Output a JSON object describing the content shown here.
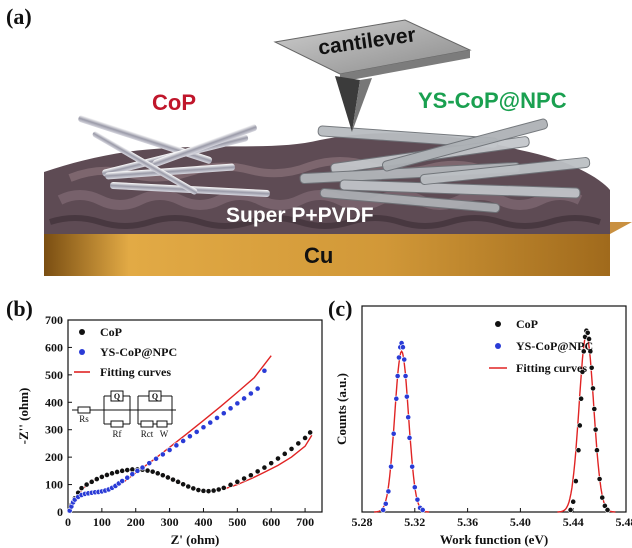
{
  "panels": {
    "a": "(a)",
    "b": "(b)",
    "c": "(c)"
  },
  "scheme": {
    "cantilever": "cantilever",
    "left_material": "CoP",
    "right_material": "YS-CoP@NPC",
    "binder": "Super P+PVDF",
    "substrate": "Cu",
    "colors": {
      "CoP": "#c0162b",
      "YS-CoP@NPC": "#1aa050",
      "substrate": "#d39a3a",
      "binder": "#5a4850"
    }
  },
  "circuit": {
    "labels": [
      "Rs",
      "Rf",
      "Rct",
      "W"
    ],
    "cpe": [
      "Q",
      "Q"
    ]
  },
  "chart_data": [
    {
      "type": "scatter",
      "xlabel": "Z' (ohm)",
      "ylabel": "-Z'' (ohm)",
      "xlim": [
        0,
        750
      ],
      "ylim": [
        0,
        700
      ],
      "xticks": [
        "0",
        "100",
        "200",
        "300",
        "400",
        "500",
        "600",
        "700"
      ],
      "yticks": [
        "0",
        "100",
        "200",
        "300",
        "400",
        "500",
        "600",
        "700"
      ],
      "legend_position": "top-left",
      "series": [
        {
          "name": "CoP",
          "color": "#111111",
          "marker": "circle",
          "x": [
            5,
            10,
            20,
            30,
            40,
            55,
            70,
            85,
            100,
            115,
            130,
            145,
            160,
            175,
            190,
            205,
            220,
            235,
            250,
            265,
            280,
            295,
            310,
            325,
            340,
            355,
            370,
            385,
            400,
            415,
            430,
            445,
            460,
            480,
            500,
            520,
            540,
            560,
            580,
            600,
            620,
            640,
            660,
            680,
            700,
            715
          ],
          "y": [
            5,
            25,
            50,
            70,
            87,
            100,
            110,
            120,
            128,
            135,
            141,
            146,
            150,
            153,
            155,
            155,
            154,
            151,
            147,
            141,
            134,
            126,
            118,
            110,
            101,
            93,
            86,
            80,
            77,
            76,
            78,
            82,
            88,
            99,
            110,
            122,
            134,
            148,
            162,
            178,
            195,
            212,
            230,
            250,
            270,
            290
          ]
        },
        {
          "name": "YS-CoP@NPC",
          "color": "#2a3bd6",
          "marker": "circle",
          "x": [
            5,
            10,
            15,
            20,
            30,
            40,
            50,
            60,
            70,
            80,
            90,
            100,
            110,
            120,
            130,
            140,
            150,
            160,
            175,
            190,
            205,
            220,
            240,
            260,
            280,
            300,
            320,
            340,
            360,
            380,
            400,
            420,
            440,
            460,
            480,
            500,
            520,
            540,
            560,
            580
          ],
          "y": [
            5,
            20,
            35,
            45,
            55,
            62,
            66,
            68,
            70,
            72,
            73,
            75,
            78,
            82,
            88,
            95,
            104,
            113,
            125,
            138,
            150,
            162,
            178,
            194,
            210,
            226,
            243,
            259,
            276,
            292,
            309,
            326,
            343,
            360,
            378,
            396,
            414,
            432,
            450,
            515
          ]
        },
        {
          "name": "Fitting curves",
          "color": "#e02424",
          "marker": "line",
          "curves": [
            {
              "x": [
                0,
                20,
                40,
                60,
                80,
                100,
                130,
                160,
                190,
                220,
                250,
                280,
                310,
                340,
                370,
                400,
                420,
                440,
                470,
                500,
                540,
                580,
                620,
                660,
                700,
                720
              ],
              "y": [
                0,
                45,
                80,
                103,
                118,
                128,
                141,
                150,
                155,
                154,
                147,
                134,
                118,
                101,
                86,
                77,
                76,
                79,
                88,
                100,
                121,
                145,
                170,
                200,
                240,
                280
              ]
            },
            {
              "x": [
                0,
                20,
                40,
                60,
                80,
                100,
                130,
                160,
                200,
                250,
                300,
                350,
                400,
                450,
                500,
                550,
                600
              ],
              "y": [
                0,
                38,
                58,
                66,
                71,
                76,
                88,
                105,
                143,
                188,
                236,
                284,
                334,
                384,
                436,
                490,
                570
              ]
            }
          ]
        }
      ]
    },
    {
      "type": "scatter",
      "xlabel": "Work function (eV)",
      "ylabel": "Counts (a.u.)",
      "xlim": [
        5.28,
        5.48
      ],
      "ylim": [
        0,
        1
      ],
      "yticks_shown": false,
      "xticks": [
        "5.28",
        "5.32",
        "5.36",
        "5.40",
        "5.44",
        "5.48"
      ],
      "legend_position": "top-right",
      "series": [
        {
          "name": "CoP",
          "color": "#111111",
          "marker": "circle",
          "x": [
            5.438,
            5.44,
            5.442,
            5.444,
            5.445,
            5.446,
            5.447,
            5.448,
            5.449,
            5.45,
            5.451,
            5.452,
            5.453,
            5.454,
            5.455,
            5.456,
            5.457,
            5.458,
            5.46,
            5.462,
            5.464,
            5.466
          ],
          "y": [
            0.01,
            0.05,
            0.15,
            0.3,
            0.42,
            0.55,
            0.68,
            0.78,
            0.85,
            0.88,
            0.87,
            0.84,
            0.78,
            0.7,
            0.6,
            0.5,
            0.4,
            0.3,
            0.16,
            0.07,
            0.03,
            0.01
          ]
        },
        {
          "name": "YS-CoP@NPC",
          "color": "#2a3bd6",
          "marker": "circle",
          "x": [
            5.296,
            5.298,
            5.3,
            5.302,
            5.304,
            5.306,
            5.307,
            5.308,
            5.309,
            5.31,
            5.311,
            5.312,
            5.313,
            5.314,
            5.315,
            5.316,
            5.318,
            5.32,
            5.322,
            5.324,
            5.326
          ],
          "y": [
            0.01,
            0.04,
            0.1,
            0.22,
            0.38,
            0.55,
            0.66,
            0.75,
            0.8,
            0.82,
            0.8,
            0.74,
            0.66,
            0.56,
            0.46,
            0.36,
            0.22,
            0.12,
            0.06,
            0.02,
            0.01
          ]
        },
        {
          "name": "Fitting curves",
          "color": "#e02424",
          "marker": "line",
          "curves": [
            {
              "center": 5.45,
              "sigma": 0.0055,
              "amp": 0.86
            },
            {
              "center": 5.31,
              "sigma": 0.0052,
              "amp": 0.78
            }
          ]
        }
      ]
    }
  ]
}
